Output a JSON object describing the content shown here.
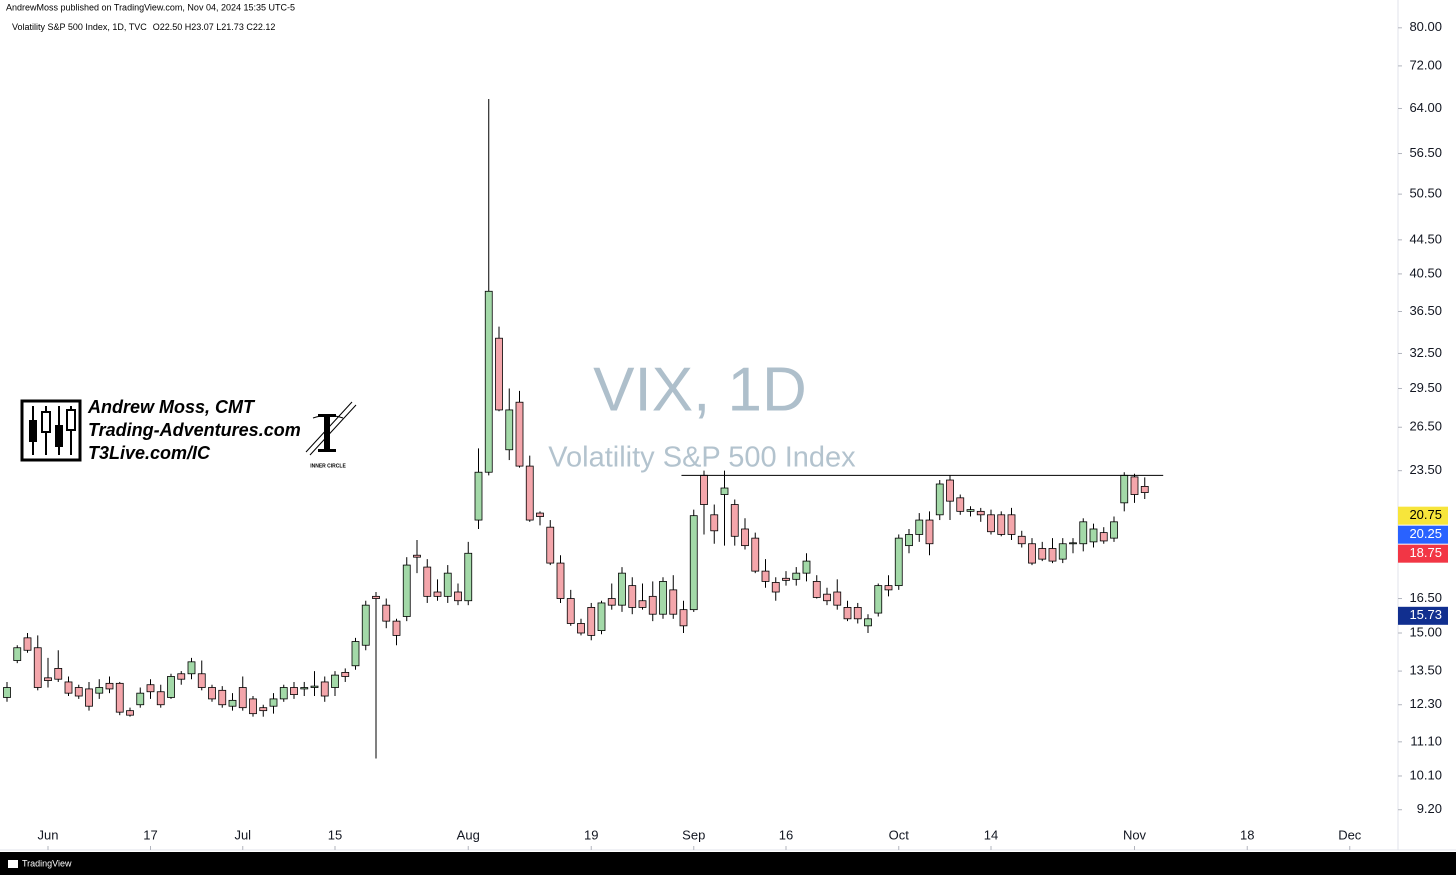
{
  "header": {
    "published": "AndrewMoss published on TradingView.com, Nov 04, 2024 15:35 UTC-5",
    "symbol": "Volatility S&P 500 Index, 1D, TVC",
    "ohlc": "O22.50 H23.07 L21.73 C22.12"
  },
  "watermark": {
    "title": "VIX, 1D",
    "subtitle": "Volatility S&P 500 Index"
  },
  "branding": {
    "lines": [
      "Andrew Moss, CMT",
      "Trading-Adventures.com",
      "T3Live.com/IC"
    ],
    "badge": "INNER CIRCLE"
  },
  "footer": "TradingView",
  "chart_data": {
    "type": "candlestick",
    "log_scale": true,
    "grid": false,
    "up_color": "#a3d9a8",
    "down_color": "#f4a6ab",
    "x": [
      "2024-05-28",
      "2024-05-29",
      "2024-05-30",
      "2024-05-31",
      "2024-06-03",
      "2024-06-04",
      "2024-06-05",
      "2024-06-06",
      "2024-06-07",
      "2024-06-10",
      "2024-06-11",
      "2024-06-12",
      "2024-06-13",
      "2024-06-14",
      "2024-06-17",
      "2024-06-18",
      "2024-06-20",
      "2024-06-21",
      "2024-06-24",
      "2024-06-25",
      "2024-06-26",
      "2024-06-27",
      "2024-06-28",
      "2024-07-01",
      "2024-07-02",
      "2024-07-03",
      "2024-07-05",
      "2024-07-08",
      "2024-07-09",
      "2024-07-10",
      "2024-07-11",
      "2024-07-12",
      "2024-07-15",
      "2024-07-16",
      "2024-07-17",
      "2024-07-18",
      "2024-07-19",
      "2024-07-22",
      "2024-07-23",
      "2024-07-24",
      "2024-07-25",
      "2024-07-26",
      "2024-07-29",
      "2024-07-30",
      "2024-07-31",
      "2024-08-01",
      "2024-08-02",
      "2024-08-05",
      "2024-08-06",
      "2024-08-07",
      "2024-08-08",
      "2024-08-09",
      "2024-08-12",
      "2024-08-13",
      "2024-08-14",
      "2024-08-15",
      "2024-08-16",
      "2024-08-19",
      "2024-08-20",
      "2024-08-21",
      "2024-08-22",
      "2024-08-23",
      "2024-08-26",
      "2024-08-27",
      "2024-08-28",
      "2024-08-29",
      "2024-08-30",
      "2024-09-03",
      "2024-09-04",
      "2024-09-05",
      "2024-09-06",
      "2024-09-09",
      "2024-09-10",
      "2024-09-11",
      "2024-09-12",
      "2024-09-13",
      "2024-09-16",
      "2024-09-17",
      "2024-09-18",
      "2024-09-19",
      "2024-09-20",
      "2024-09-23",
      "2024-09-24",
      "2024-09-25",
      "2024-09-26",
      "2024-09-27",
      "2024-09-30",
      "2024-10-01",
      "2024-10-02",
      "2024-10-03",
      "2024-10-04",
      "2024-10-07",
      "2024-10-08",
      "2024-10-09",
      "2024-10-10",
      "2024-10-11",
      "2024-10-14",
      "2024-10-15",
      "2024-10-16",
      "2024-10-17",
      "2024-10-18",
      "2024-10-21",
      "2024-10-22",
      "2024-10-23",
      "2024-10-24",
      "2024-10-25",
      "2024-10-28",
      "2024-10-29",
      "2024-10-30",
      "2024-10-31",
      "2024-11-01",
      "2024-11-04"
    ],
    "open": [
      12.55,
      13.9,
      14.8,
      14.4,
      13.25,
      13.6,
      13.1,
      12.9,
      12.85,
      12.7,
      13.05,
      13.05,
      12.1,
      12.3,
      13.0,
      12.75,
      12.55,
      13.4,
      13.4,
      13.4,
      12.9,
      12.8,
      12.25,
      12.9,
      12.5,
      12.2,
      12.25,
      12.5,
      12.9,
      12.85,
      12.9,
      13.1,
      12.9,
      13.45,
      13.7,
      14.5,
      16.6,
      16.2,
      15.5,
      15.7,
      18.6,
      18.0,
      16.8,
      16.6,
      16.8,
      16.4,
      20.5,
      23.4,
      33.9,
      24.9,
      28.4,
      23.8,
      20.9,
      20.1,
      18.2,
      16.5,
      15.4,
      16.1,
      15.1,
      16.5,
      16.2,
      17.1,
      16.4,
      16.6,
      15.8,
      16.9,
      16.0,
      16.0,
      23.2,
      20.8,
      22.0,
      21.4,
      20.0,
      19.5,
      17.8,
      17.25,
      17.45,
      17.4,
      17.7,
      17.3,
      16.7,
      16.8,
      16.1,
      16.1,
      15.3,
      15.85,
      17.1,
      17.1,
      19.1,
      19.7,
      20.5,
      20.8,
      22.9,
      21.8,
      21.0,
      21.0,
      20.8,
      20.8,
      20.8,
      19.6,
      19.2,
      18.95,
      18.95,
      18.4,
      19.2,
      19.2,
      19.3,
      19.8,
      19.5,
      21.5,
      23.1,
      22.5
    ],
    "high": [
      13.1,
      14.5,
      15.0,
      14.9,
      14.0,
      14.3,
      13.3,
      13.0,
      13.1,
      13.2,
      13.3,
      13.1,
      12.2,
      12.9,
      13.2,
      13.0,
      13.4,
      13.5,
      14.0,
      13.9,
      13.0,
      12.95,
      12.7,
      13.3,
      12.6,
      12.3,
      12.7,
      13.0,
      13.1,
      13.1,
      13.5,
      13.3,
      13.5,
      13.6,
      14.8,
      16.4,
      16.8,
      16.5,
      15.6,
      18.5,
      19.4,
      18.4,
      17.4,
      18.1,
      17.2,
      19.3,
      25.0,
      65.7,
      35.0,
      29.5,
      29.3,
      24.5,
      21.0,
      20.5,
      18.6,
      16.9,
      15.6,
      16.3,
      16.4,
      17.2,
      18.0,
      17.5,
      17.2,
      17.3,
      17.5,
      17.6,
      16.4,
      21.1,
      23.5,
      21.4,
      23.5,
      21.7,
      20.6,
      19.8,
      18.4,
      17.5,
      17.8,
      18.0,
      18.7,
      17.6,
      17.0,
      17.4,
      16.4,
      16.3,
      15.8,
      17.2,
      17.6,
      19.7,
      20.0,
      20.9,
      21.0,
      22.9,
      23.2,
      22.0,
      21.3,
      21.2,
      21.1,
      21.0,
      21.2,
      19.9,
      19.5,
      19.3,
      19.5,
      19.5,
      19.5,
      20.6,
      20.3,
      20.1,
      20.7,
      23.4,
      23.3,
      23.07
    ],
    "low": [
      12.4,
      13.8,
      14.2,
      12.8,
      12.9,
      13.1,
      12.6,
      12.5,
      12.1,
      12.5,
      12.7,
      11.95,
      11.9,
      12.2,
      12.5,
      12.2,
      12.5,
      13.0,
      13.2,
      12.8,
      12.4,
      12.2,
      12.1,
      12.1,
      11.9,
      11.9,
      12.0,
      12.4,
      12.5,
      12.6,
      12.6,
      12.4,
      12.6,
      13.1,
      13.55,
      14.3,
      10.6,
      15.2,
      14.5,
      15.5,
      17.7,
      16.3,
      16.4,
      16.3,
      16.2,
      16.2,
      20.0,
      23.2,
      27.7,
      24.2,
      23.7,
      20.4,
      20.2,
      18.1,
      16.3,
      15.3,
      14.9,
      14.7,
      14.95,
      16.0,
      15.9,
      15.8,
      16.0,
      15.5,
      15.6,
      15.6,
      15.0,
      15.9,
      19.7,
      19.2,
      19.1,
      19.1,
      18.9,
      17.7,
      17.0,
      16.4,
      17.1,
      17.1,
      17.3,
      16.5,
      16.2,
      16.0,
      15.5,
      15.4,
      15.0,
      15.7,
      16.6,
      16.9,
      18.7,
      19.3,
      18.6,
      20.5,
      20.5,
      20.8,
      20.7,
      20.4,
      19.7,
      19.6,
      19.4,
      19.0,
      18.1,
      18.3,
      18.2,
      18.2,
      18.7,
      18.8,
      19.0,
      19.2,
      19.3,
      21.0,
      21.5,
      21.73
    ],
    "close": [
      12.9,
      14.4,
      14.3,
      12.9,
      13.15,
      13.2,
      12.7,
      12.6,
      12.25,
      12.9,
      12.85,
      12.05,
      11.95,
      12.7,
      12.75,
      12.3,
      13.3,
      13.2,
      13.85,
      12.9,
      12.5,
      12.3,
      12.45,
      12.2,
      12.0,
      12.1,
      12.5,
      12.9,
      12.65,
      12.9,
      12.95,
      12.6,
      13.35,
      13.3,
      14.65,
      16.2,
      16.5,
      15.5,
      14.9,
      18.1,
      18.5,
      16.6,
      16.6,
      17.7,
      16.4,
      18.7,
      23.4,
      38.6,
      27.8,
      27.8,
      23.8,
      20.5,
      20.7,
      18.2,
      16.5,
      15.4,
      15.0,
      14.9,
      16.3,
      16.2,
      17.7,
      16.1,
      16.1,
      15.8,
      17.3,
      15.8,
      15.3,
      20.75,
      21.4,
      19.9,
      22.4,
      19.6,
      19.1,
      17.8,
      17.3,
      16.8,
      17.35,
      17.7,
      18.3,
      16.55,
      16.4,
      16.2,
      15.6,
      15.6,
      15.6,
      17.1,
      16.9,
      19.5,
      19.7,
      20.5,
      19.2,
      22.65,
      21.6,
      21.0,
      21.1,
      20.8,
      19.85,
      19.7,
      19.7,
      19.2,
      18.2,
      18.4,
      18.3,
      19.2,
      19.25,
      20.4,
      20.0,
      19.35,
      20.4,
      23.2,
      22.0,
      22.12
    ],
    "ylim": [
      8.23,
      82.2
    ],
    "yticks": [
      {
        "value": 80,
        "label": "80.00"
      },
      {
        "value": 72,
        "label": "72.00"
      },
      {
        "value": 64,
        "label": "64.00"
      },
      {
        "value": 56.5,
        "label": "56.50"
      },
      {
        "value": 50.5,
        "label": "50.50"
      },
      {
        "value": 44.5,
        "label": "44.50"
      },
      {
        "value": 40.5,
        "label": "40.50"
      },
      {
        "value": 36.5,
        "label": "36.50"
      },
      {
        "value": 32.5,
        "label": "32.50"
      },
      {
        "value": 29.5,
        "label": "29.50"
      },
      {
        "value": 26.5,
        "label": "26.50"
      },
      {
        "value": 23.5,
        "label": "23.50"
      },
      {
        "value": 16.5,
        "label": "16.50"
      },
      {
        "value": 15,
        "label": "15.00"
      },
      {
        "value": 13.5,
        "label": "13.50"
      },
      {
        "value": 12.3,
        "label": "12.30"
      },
      {
        "value": 11.1,
        "label": "11.10"
      },
      {
        "value": 10.1,
        "label": "10.10"
      },
      {
        "value": 9.2,
        "label": "9.20"
      }
    ],
    "xticks": [
      {
        "value": "2024-06-03",
        "label": "Jun"
      },
      {
        "value": "2024-06-17",
        "label": "17"
      },
      {
        "value": "2024-07-01",
        "label": "Jul"
      },
      {
        "value": "2024-07-15",
        "label": "15"
      },
      {
        "value": "2024-08-01",
        "label": "Aug"
      },
      {
        "value": "2024-08-19",
        "label": "19"
      },
      {
        "value": "2024-09-03",
        "label": "Sep"
      },
      {
        "value": "2024-09-16",
        "label": "16"
      },
      {
        "value": "2024-10-01",
        "label": "Oct"
      },
      {
        "value": "2024-10-14",
        "label": "14"
      },
      {
        "value": "2024-11-01",
        "label": "Nov"
      },
      {
        "value": "2024-11-18",
        "label": "18"
      },
      {
        "value": "2024-12-02",
        "label": "Dec"
      }
    ],
    "price_labels": [
      {
        "value": 20.75,
        "label": "20.75",
        "color": "#f7e53b",
        "text_color": "#000000"
      },
      {
        "value": 20.25,
        "label": "20.25",
        "color": "#2962ff",
        "text_color": "#ffffff"
      },
      {
        "value": 18.75,
        "label": "18.75",
        "color": "#f23645",
        "text_color": "#ffffff"
      },
      {
        "value": 15.73,
        "label": "15.73",
        "color": "#112f8f",
        "text_color": "#ffffff"
      }
    ],
    "hline": {
      "value": 23.2,
      "color": "#000000"
    }
  }
}
